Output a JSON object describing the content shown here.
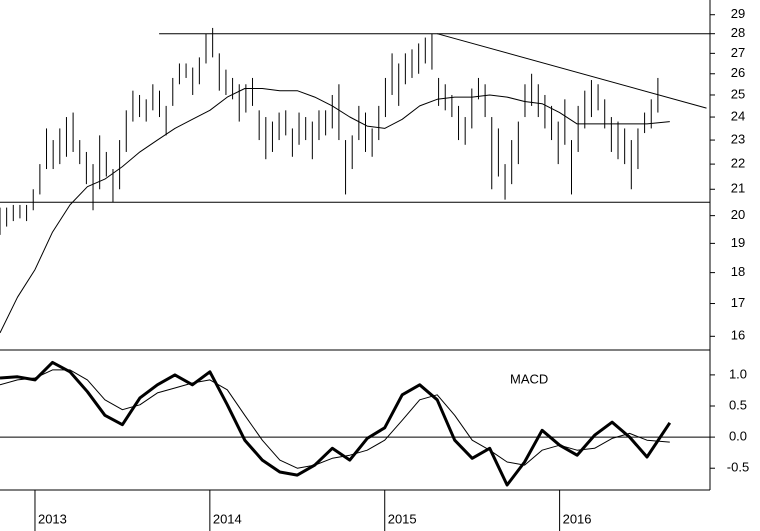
{
  "chart_data": [
    {
      "type": "hilo",
      "log_scale": true,
      "color": "#000000",
      "xlim": [
        2012.8,
        2016.86
      ],
      "ylim": [
        15.6,
        29.8
      ],
      "yticks": [
        16,
        17,
        18,
        19,
        20,
        21,
        22,
        23,
        24,
        25,
        26,
        27,
        28,
        29
      ],
      "x": [
        2012.8,
        2012.838,
        2012.876,
        2012.914,
        2012.952,
        2012.99,
        2013.028,
        2013.066,
        2013.104,
        2013.142,
        2013.18,
        2013.218,
        2013.256,
        2013.294,
        2013.332,
        2013.37,
        2013.408,
        2013.446,
        2013.484,
        2013.522,
        2013.56,
        2013.598,
        2013.636,
        2013.674,
        2013.712,
        2013.75,
        2013.788,
        2013.826,
        2013.864,
        2013.902,
        2013.94,
        2013.978,
        2014.016,
        2014.054,
        2014.092,
        2014.13,
        2014.168,
        2014.206,
        2014.244,
        2014.282,
        2014.32,
        2014.358,
        2014.396,
        2014.434,
        2014.472,
        2014.51,
        2014.548,
        2014.586,
        2014.624,
        2014.662,
        2014.7,
        2014.738,
        2014.776,
        2014.814,
        2014.852,
        2014.89,
        2014.928,
        2014.966,
        2015.004,
        2015.042,
        2015.08,
        2015.118,
        2015.156,
        2015.194,
        2015.232,
        2015.27,
        2015.308,
        2015.346,
        2015.384,
        2015.422,
        2015.46,
        2015.498,
        2015.536,
        2015.574,
        2015.612,
        2015.65,
        2015.688,
        2015.726,
        2015.764,
        2015.802,
        2015.84,
        2015.878,
        2015.916,
        2015.954,
        2015.992,
        2016.03,
        2016.068,
        2016.106,
        2016.144,
        2016.182,
        2016.22,
        2016.258,
        2016.296,
        2016.334,
        2016.372,
        2016.41,
        2016.448,
        2016.486,
        2016.524,
        2016.562
      ],
      "high": [
        20.3,
        20.3,
        20.4,
        20.4,
        20.4,
        21.0,
        22.0,
        23.5,
        23.0,
        23.5,
        24.0,
        24.2,
        23.0,
        22.5,
        22.0,
        23.2,
        22.5,
        21.8,
        23.0,
        24.3,
        25.2,
        25.0,
        24.8,
        25.5,
        25.2,
        24.5,
        25.8,
        26.5,
        26.5,
        26.3,
        26.8,
        28.0,
        28.3,
        27.0,
        26.2,
        25.8,
        25.5,
        25.5,
        25.8,
        24.3,
        24.0,
        23.8,
        24.2,
        24.3,
        23.5,
        24.2,
        24.0,
        23.8,
        24.3,
        24.3,
        25.0,
        25.5,
        23.0,
        23.2,
        24.5,
        24.2,
        23.5,
        24.5,
        25.8,
        27.0,
        26.5,
        27.0,
        27.2,
        27.5,
        27.8,
        28.0,
        25.8,
        25.5,
        25.0,
        24.5,
        24.0,
        25.3,
        25.8,
        25.5,
        24.0,
        23.5,
        22.0,
        23.0,
        23.8,
        25.5,
        26.0,
        25.5,
        25.0,
        24.5,
        23.8,
        24.8,
        23.0,
        24.5,
        25.2,
        25.7,
        25.5,
        24.8,
        24.0,
        23.8,
        23.5,
        23.0,
        23.5,
        24.2,
        24.8,
        25.8
      ],
      "low": [
        19.3,
        19.6,
        19.8,
        19.9,
        19.8,
        20.2,
        20.8,
        21.8,
        21.8,
        22.0,
        22.3,
        22.5,
        22.0,
        21.2,
        20.2,
        21.0,
        21.5,
        20.5,
        21.0,
        22.5,
        23.8,
        24.0,
        23.8,
        24.3,
        24.0,
        23.2,
        24.5,
        25.5,
        25.8,
        25.0,
        25.5,
        26.5,
        26.8,
        25.2,
        25.0,
        24.8,
        23.8,
        24.2,
        24.5,
        23.0,
        22.2,
        22.5,
        23.0,
        23.2,
        22.3,
        22.8,
        23.0,
        22.2,
        23.0,
        23.2,
        23.5,
        23.0,
        20.8,
        21.8,
        23.0,
        22.5,
        22.3,
        23.0,
        24.0,
        25.0,
        24.5,
        25.5,
        25.8,
        26.0,
        26.5,
        26.2,
        24.5,
        24.3,
        24.0,
        23.0,
        22.8,
        23.5,
        24.8,
        24.0,
        21.0,
        21.5,
        20.6,
        21.2,
        22.0,
        24.0,
        24.5,
        24.0,
        23.5,
        23.0,
        22.0,
        22.8,
        20.8,
        22.5,
        23.5,
        24.0,
        24.3,
        23.5,
        22.5,
        22.2,
        22.0,
        21.0,
        21.8,
        23.3,
        23.5,
        24.2
      ],
      "overlay": {
        "x": [
          2012.8,
          2012.9,
          2013.0,
          2013.1,
          2013.2,
          2013.3,
          2013.4,
          2013.5,
          2013.6,
          2013.7,
          2013.8,
          2013.9,
          2014.0,
          2014.1,
          2014.2,
          2014.3,
          2014.4,
          2014.5,
          2014.6,
          2014.7,
          2014.8,
          2014.9,
          2015.0,
          2015.1,
          2015.2,
          2015.3,
          2015.4,
          2015.5,
          2015.6,
          2015.7,
          2015.8,
          2015.9,
          2016.0,
          2016.1,
          2016.2,
          2016.3,
          2016.4,
          2016.5,
          2016.63
        ],
        "values": [
          16.1,
          17.2,
          18.1,
          19.4,
          20.4,
          21.1,
          21.4,
          21.9,
          22.5,
          23.0,
          23.5,
          23.9,
          24.3,
          24.9,
          25.3,
          25.3,
          25.2,
          25.2,
          24.9,
          24.5,
          24.0,
          23.6,
          23.5,
          23.9,
          24.5,
          24.8,
          24.9,
          24.9,
          25.0,
          24.9,
          24.7,
          24.6,
          24.2,
          23.7,
          23.7,
          23.7,
          23.7,
          23.7,
          23.8
        ]
      },
      "lines": [
        {
          "x": [
            2013.71,
            2016.86
          ],
          "values": [
            28,
            28
          ]
        },
        {
          "x": [
            2012.8,
            2016.86
          ],
          "values": [
            20.5,
            20.5
          ]
        },
        {
          "x": [
            2015.3,
            2016.84
          ],
          "values": [
            28,
            24.4
          ]
        }
      ]
    },
    {
      "type": "line",
      "title": "MACD",
      "zero_line": true,
      "xlim": [
        2012.8,
        2016.86
      ],
      "ylim": [
        -0.85,
        1.4
      ],
      "xticks": [
        2013,
        2014,
        2015,
        2016
      ],
      "yticks": [
        {
          "value": 1,
          "label": "1.0"
        },
        0.5,
        {
          "value": 0,
          "label": "0.0"
        },
        -0.5
      ],
      "x": [
        2012.8,
        2012.9,
        2013.0,
        2013.1,
        2013.2,
        2013.3,
        2013.4,
        2013.5,
        2013.6,
        2013.7,
        2013.8,
        2013.9,
        2014.0,
        2014.1,
        2014.2,
        2014.3,
        2014.4,
        2014.5,
        2014.6,
        2014.7,
        2014.8,
        2014.9,
        2015.0,
        2015.1,
        2015.2,
        2015.3,
        2015.4,
        2015.5,
        2015.6,
        2015.7,
        2015.8,
        2015.9,
        2016.0,
        2016.1,
        2016.2,
        2016.3,
        2016.4,
        2016.5,
        2016.63
      ],
      "series": [
        {
          "color": "#000000",
          "width": 3,
          "values": [
            0.95,
            0.97,
            0.92,
            1.2,
            1.05,
            0.73,
            0.35,
            0.2,
            0.63,
            0.84,
            1.0,
            0.84,
            1.05,
            0.52,
            -0.05,
            -0.37,
            -0.56,
            -0.61,
            -0.45,
            -0.18,
            -0.37,
            -0.02,
            0.15,
            0.68,
            0.84,
            0.6,
            -0.05,
            -0.34,
            -0.18,
            -0.77,
            -0.4,
            0.11,
            -0.13,
            -0.29,
            0.03,
            0.24,
            0.0,
            -0.32,
            0.23
          ]
        },
        {
          "color": "#000000",
          "width": 1,
          "values": [
            0.84,
            0.92,
            0.95,
            1.08,
            1.08,
            0.92,
            0.6,
            0.44,
            0.52,
            0.71,
            0.79,
            0.87,
            0.92,
            0.76,
            0.35,
            -0.05,
            -0.37,
            -0.5,
            -0.45,
            -0.34,
            -0.29,
            -0.21,
            -0.05,
            0.27,
            0.6,
            0.68,
            0.35,
            -0.05,
            -0.21,
            -0.4,
            -0.45,
            -0.21,
            -0.13,
            -0.21,
            -0.18,
            -0.02,
            0.06,
            -0.05,
            -0.08
          ]
        }
      ]
    }
  ]
}
